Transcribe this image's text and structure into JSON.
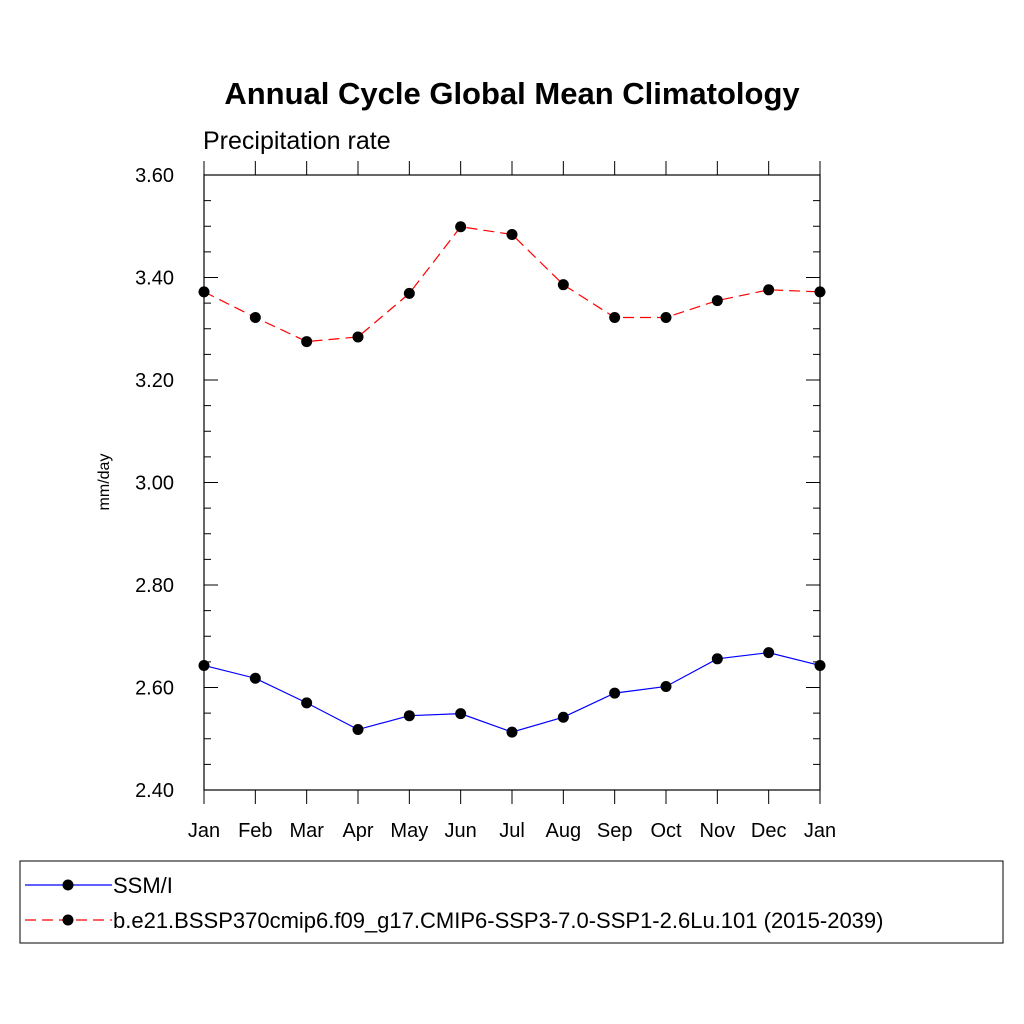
{
  "chart_data": {
    "type": "line",
    "title": "Annual Cycle Global Mean Climatology",
    "subtitle": "Precipitation rate",
    "ylabel": "mm/day",
    "xlabel": "",
    "categories": [
      "Jan",
      "Feb",
      "Mar",
      "Apr",
      "May",
      "Jun",
      "Jul",
      "Aug",
      "Sep",
      "Oct",
      "Nov",
      "Dec",
      "Jan"
    ],
    "ylim": [
      2.4,
      3.6
    ],
    "yticks": [
      "2.40",
      "2.60",
      "2.80",
      "3.00",
      "3.20",
      "3.40",
      "3.60"
    ],
    "grid": false,
    "legend_position": "bottom",
    "series": [
      {
        "name": "SSM/I",
        "color": "#0000ff",
        "dash": "solid",
        "marker": "filled-circle",
        "values": [
          2.643,
          2.618,
          2.57,
          2.518,
          2.545,
          2.549,
          2.513,
          2.542,
          2.589,
          2.602,
          2.656,
          2.668,
          2.643
        ]
      },
      {
        "name": "b.e21.BSSP370cmip6.f09_g17.CMIP6-SSP3-7.0-SSP1-2.6Lu.101 (2015-2039)",
        "color": "#ff0000",
        "dash": "dashed",
        "marker": "filled-circle",
        "values": [
          3.372,
          3.322,
          3.275,
          3.284,
          3.369,
          3.499,
          3.484,
          3.386,
          3.322,
          3.322,
          3.355,
          3.376,
          3.372
        ]
      }
    ]
  }
}
